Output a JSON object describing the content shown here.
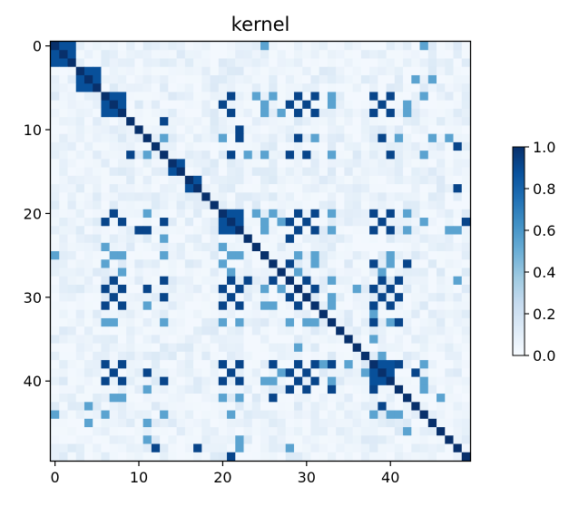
{
  "chart_data": {
    "type": "heatmap",
    "title": "kernel",
    "xlabel": "",
    "ylabel": "",
    "n": 50,
    "x_ticks": [
      0,
      10,
      20,
      30,
      40
    ],
    "y_ticks": [
      0,
      10,
      20,
      30,
      40
    ],
    "colormap": "Blues",
    "vmin": 0.0,
    "vmax": 1.0,
    "colorbar_ticks": [
      "0.0",
      "0.2",
      "0.4",
      "0.6",
      "0.8",
      "1.0"
    ],
    "clusters": [
      [
        0,
        2
      ],
      [
        3,
        5
      ],
      [
        6,
        8
      ],
      [
        14,
        15
      ],
      [
        16,
        17
      ],
      [
        20,
        22
      ],
      [
        38,
        40
      ]
    ],
    "strong_pairs": [
      [
        6,
        21
      ],
      [
        6,
        29
      ],
      [
        6,
        31
      ],
      [
        6,
        38
      ],
      [
        6,
        40
      ],
      [
        7,
        20
      ],
      [
        7,
        28
      ],
      [
        7,
        30
      ],
      [
        7,
        39
      ],
      [
        8,
        21
      ],
      [
        8,
        29
      ],
      [
        8,
        31
      ],
      [
        8,
        38
      ],
      [
        8,
        40
      ],
      [
        9,
        13
      ],
      [
        11,
        22
      ],
      [
        11,
        29
      ],
      [
        11,
        39
      ],
      [
        13,
        21
      ],
      [
        13,
        28
      ],
      [
        13,
        30
      ],
      [
        13,
        40
      ],
      [
        20,
        29
      ],
      [
        20,
        31
      ],
      [
        20,
        38
      ],
      [
        20,
        40
      ],
      [
        21,
        28
      ],
      [
        21,
        30
      ],
      [
        21,
        39
      ],
      [
        22,
        29
      ],
      [
        22,
        31
      ],
      [
        22,
        38
      ],
      [
        22,
        40
      ],
      [
        26,
        28
      ],
      [
        26,
        38
      ],
      [
        26,
        42
      ],
      [
        28,
        30
      ],
      [
        28,
        39
      ],
      [
        28,
        41
      ],
      [
        29,
        31
      ],
      [
        29,
        38
      ],
      [
        29,
        40
      ],
      [
        30,
        39
      ],
      [
        30,
        41
      ],
      [
        31,
        38
      ],
      [
        31,
        40
      ],
      [
        33,
        38
      ],
      [
        33,
        41
      ],
      [
        38,
        41
      ],
      [
        39,
        43
      ],
      [
        10,
        22
      ],
      [
        23,
        28
      ],
      [
        17,
        48
      ],
      [
        12,
        48
      ],
      [
        49,
        21
      ]
    ],
    "medium_pairs": [
      [
        0,
        25
      ],
      [
        0,
        44
      ],
      [
        4,
        43
      ],
      [
        6,
        24
      ],
      [
        6,
        26
      ],
      [
        6,
        33
      ],
      [
        6,
        44
      ],
      [
        7,
        25
      ],
      [
        7,
        33
      ],
      [
        7,
        42
      ],
      [
        8,
        25
      ],
      [
        8,
        27
      ],
      [
        8,
        42
      ],
      [
        11,
        13
      ],
      [
        11,
        20
      ],
      [
        11,
        31
      ],
      [
        11,
        41
      ],
      [
        11,
        45
      ],
      [
        13,
        23
      ],
      [
        13,
        25
      ],
      [
        13,
        33
      ],
      [
        13,
        44
      ],
      [
        20,
        24
      ],
      [
        20,
        26
      ],
      [
        20,
        33
      ],
      [
        20,
        42
      ],
      [
        21,
        25
      ],
      [
        21,
        27
      ],
      [
        21,
        44
      ],
      [
        22,
        25
      ],
      [
        22,
        33
      ],
      [
        22,
        42
      ],
      [
        25,
        29
      ],
      [
        25,
        31
      ],
      [
        25,
        40
      ],
      [
        26,
        31
      ],
      [
        26,
        40
      ],
      [
        27,
        29
      ],
      [
        27,
        39
      ],
      [
        28,
        33
      ],
      [
        30,
        33
      ],
      [
        31,
        33
      ],
      [
        32,
        38
      ],
      [
        33,
        40
      ],
      [
        35,
        38
      ],
      [
        37,
        39
      ],
      [
        38,
        44
      ],
      [
        40,
        44
      ],
      [
        41,
        44
      ],
      [
        42,
        46
      ],
      [
        11,
        47
      ],
      [
        22,
        48
      ],
      [
        28,
        48
      ],
      [
        36,
        29
      ],
      [
        45,
        4
      ],
      [
        47,
        22
      ]
    ]
  }
}
